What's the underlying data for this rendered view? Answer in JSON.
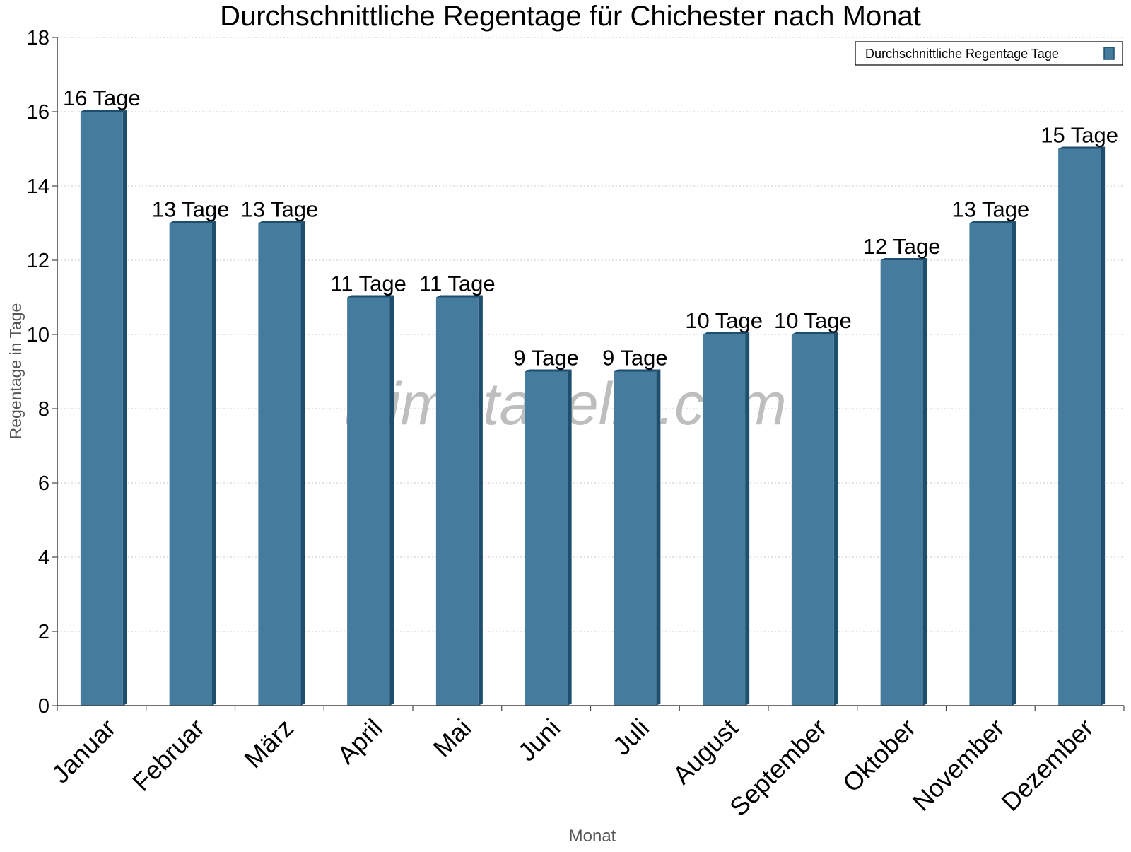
{
  "chart_data": {
    "type": "bar",
    "title": "Durchschnittliche Regentage für Chichester nach Monat",
    "xlabel": "Monat",
    "ylabel": "Regentage in Tage",
    "categories": [
      "Januar",
      "Februar",
      "März",
      "April",
      "Mai",
      "Juni",
      "Juli",
      "August",
      "September",
      "Oktober",
      "November",
      "Dezember"
    ],
    "series": [
      {
        "name": "Durchschnittliche Regentage Tage",
        "values": [
          16,
          13,
          13,
          11,
          11,
          9,
          9,
          10,
          10,
          12,
          13,
          15
        ],
        "data_labels": [
          "16 Tage",
          "13 Tage",
          "13 Tage",
          "11 Tage",
          "11 Tage",
          "9 Tage",
          "9 Tage",
          "10 Tage",
          "10 Tage",
          "12 Tage",
          "13 Tage",
          "15 Tage"
        ]
      }
    ],
    "ylim": [
      0,
      18
    ],
    "yticks": [
      0,
      2,
      4,
      6,
      8,
      10,
      12,
      14,
      16,
      18
    ],
    "grid": true,
    "legend_position": "top-right",
    "watermark": "klimatabelle.com",
    "colors": {
      "bar": "#457B9D",
      "bar_side": "#1D4E6E",
      "bar_top": "#1D4E6E",
      "axis": "#444444",
      "grid": "#C8C8C8",
      "axis_title": "#555555",
      "watermark": "#BEBEBE"
    }
  }
}
